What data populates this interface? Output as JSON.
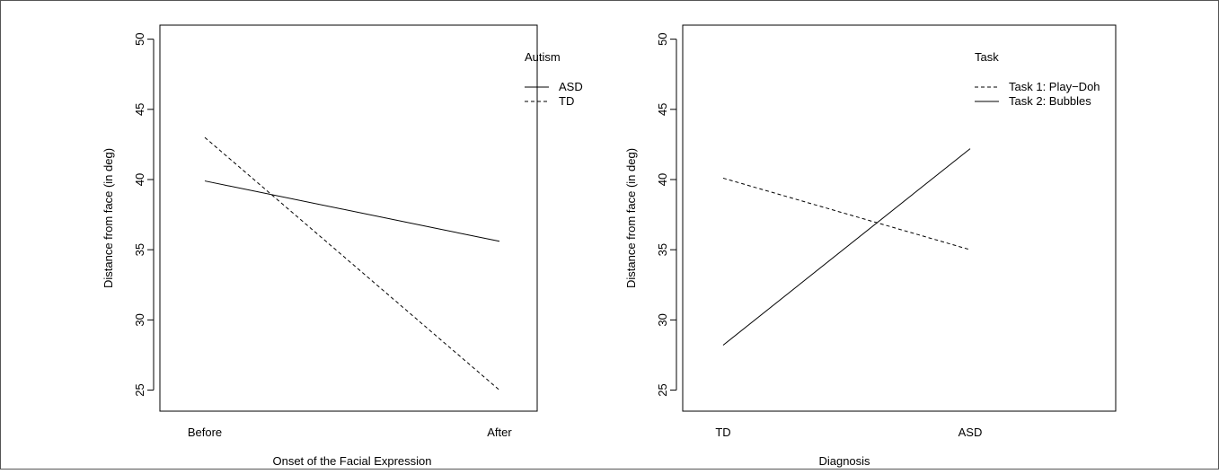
{
  "chart_data": [
    {
      "type": "line",
      "xlabel": "Onset of the Facial Expression",
      "ylabel": "Distance from face (in deg)",
      "categories": [
        "Before",
        "After"
      ],
      "ylim": [
        23.5,
        51
      ],
      "yticks": [
        25,
        30,
        35,
        40,
        45,
        50
      ],
      "legend_title": "Autism",
      "legend_position": "top-right",
      "series": [
        {
          "name": "ASD",
          "values": [
            39.9,
            35.6
          ],
          "linestyle": "solid"
        },
        {
          "name": "TD",
          "values": [
            43.0,
            25.0
          ],
          "linestyle": "dashed"
        }
      ]
    },
    {
      "type": "line",
      "xlabel": "Diagnosis",
      "ylabel": "Distance from face (in deg)",
      "categories": [
        "TD",
        "ASD"
      ],
      "ylim": [
        23.5,
        51
      ],
      "yticks": [
        25,
        30,
        35,
        40,
        45,
        50
      ],
      "legend_title": "Task",
      "legend_position": "top-right",
      "series": [
        {
          "name": "Task 1: Play−Doh",
          "values": [
            40.1,
            35.0
          ],
          "linestyle": "dashed"
        },
        {
          "name": "Task 2: Bubbles",
          "values": [
            28.2,
            42.2
          ],
          "linestyle": "solid"
        }
      ]
    }
  ]
}
